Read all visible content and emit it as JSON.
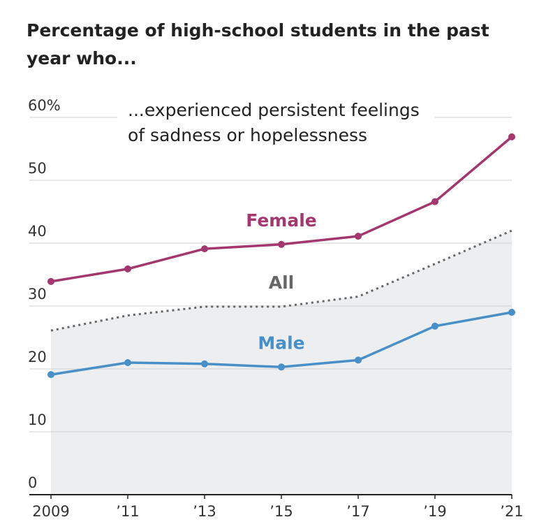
{
  "chart_data": {
    "type": "line",
    "title": "Percentage of high-school students in the past year who...",
    "annotation": [
      "...experienced persistent feelings",
      "of sadness or hopelessness"
    ],
    "categories": [
      "2009",
      "’11",
      "’13",
      "’15",
      "’17",
      "’19",
      "’21"
    ],
    "series": [
      {
        "name": "Female",
        "color": "#a2386f",
        "values": [
          33.9,
          35.9,
          39.1,
          39.8,
          41.1,
          46.6,
          56.9
        ],
        "markers": true
      },
      {
        "name": "All",
        "color": "#666666",
        "values": [
          26.1,
          28.5,
          29.9,
          29.9,
          31.5,
          36.7,
          42
        ],
        "dotted": true,
        "area": "#eceef0"
      },
      {
        "name": "Male",
        "color": "#4a90c8",
        "values": [
          19.1,
          21,
          20.8,
          20.3,
          21.4,
          26.8,
          29
        ],
        "markers": true
      }
    ],
    "ylim": [
      0,
      60
    ],
    "yticks": [
      0,
      10,
      20,
      30,
      40,
      50,
      {
        "value": 60,
        "label": "60%"
      }
    ],
    "grid": true
  }
}
